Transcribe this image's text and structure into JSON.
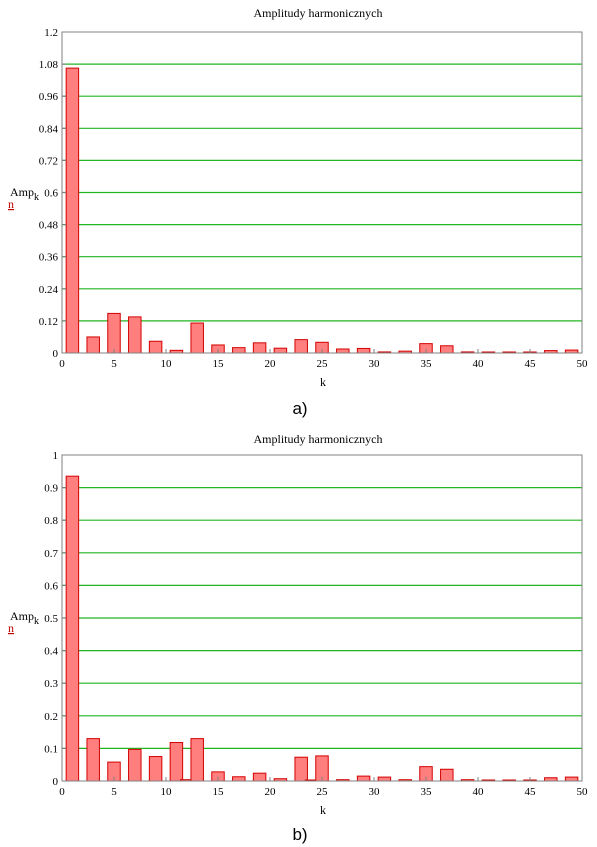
{
  "charts": [
    {
      "caption": "a)",
      "chart_data": {
        "type": "bar",
        "title": "Amplitudy harmonicznych",
        "xlabel": "k",
        "ylabel_main": "Amp",
        "ylabel_sub": "k",
        "ylabel_under": "n",
        "xlim": [
          0,
          50
        ],
        "ylim": [
          0,
          1.2
        ],
        "xticks": [
          "0",
          "5",
          "10",
          "15",
          "20",
          "25",
          "30",
          "35",
          "40",
          "45",
          "50"
        ],
        "yticks": [
          "0",
          "0.12",
          "0.24",
          "0.36",
          "0.48",
          "0.6",
          "0.72",
          "0.84",
          "0.96",
          "1.08",
          "1.2"
        ],
        "grid": true,
        "x": [
          1,
          3,
          5,
          7,
          9,
          11,
          13,
          15,
          17,
          19,
          21,
          23,
          25,
          27,
          29,
          31,
          33,
          35,
          37,
          39,
          41,
          43,
          45,
          47,
          49
        ],
        "values": [
          1.065,
          0.06,
          0.148,
          0.135,
          0.044,
          0.01,
          0.112,
          0.03,
          0.02,
          0.038,
          0.018,
          0.05,
          0.04,
          0.015,
          0.017,
          0.004,
          0.007,
          0.035,
          0.027,
          0.004,
          0.003,
          0.003,
          0.003,
          0.009,
          0.011
        ],
        "bar_color": "#ff7f7f",
        "bar_edge": "#d40000",
        "grid_color": "#22b522"
      }
    },
    {
      "caption": "b)",
      "chart_data": {
        "type": "bar",
        "title": "Amplitudy harmonicznych",
        "xlabel": "k",
        "ylabel_main": "Amp",
        "ylabel_sub": "k",
        "ylabel_under": "n",
        "xlim": [
          0,
          50
        ],
        "ylim": [
          0,
          1
        ],
        "xticks": [
          "0",
          "5",
          "10",
          "15",
          "20",
          "25",
          "30",
          "35",
          "40",
          "45",
          "50"
        ],
        "yticks": [
          "0",
          "0.1",
          "0.2",
          "0.3",
          "0.4",
          "0.5",
          "0.6",
          "0.7",
          "0.8",
          "0.9",
          "1"
        ],
        "grid": true,
        "x": [
          1,
          3,
          5,
          7,
          9,
          11,
          12,
          13,
          15,
          17,
          19,
          21,
          23,
          24,
          25,
          27,
          29,
          31,
          33,
          35,
          37,
          39,
          41,
          43,
          45,
          47,
          49
        ],
        "values": [
          0.935,
          0.13,
          0.058,
          0.097,
          0.075,
          0.118,
          0.004,
          0.13,
          0.028,
          0.013,
          0.024,
          0.007,
          0.073,
          0.003,
          0.077,
          0.004,
          0.015,
          0.012,
          0.004,
          0.044,
          0.036,
          0.004,
          0.003,
          0.003,
          0.002,
          0.01,
          0.012
        ],
        "bar_color": "#ff7f7f",
        "bar_edge": "#d40000",
        "grid_color": "#22b522"
      }
    }
  ]
}
